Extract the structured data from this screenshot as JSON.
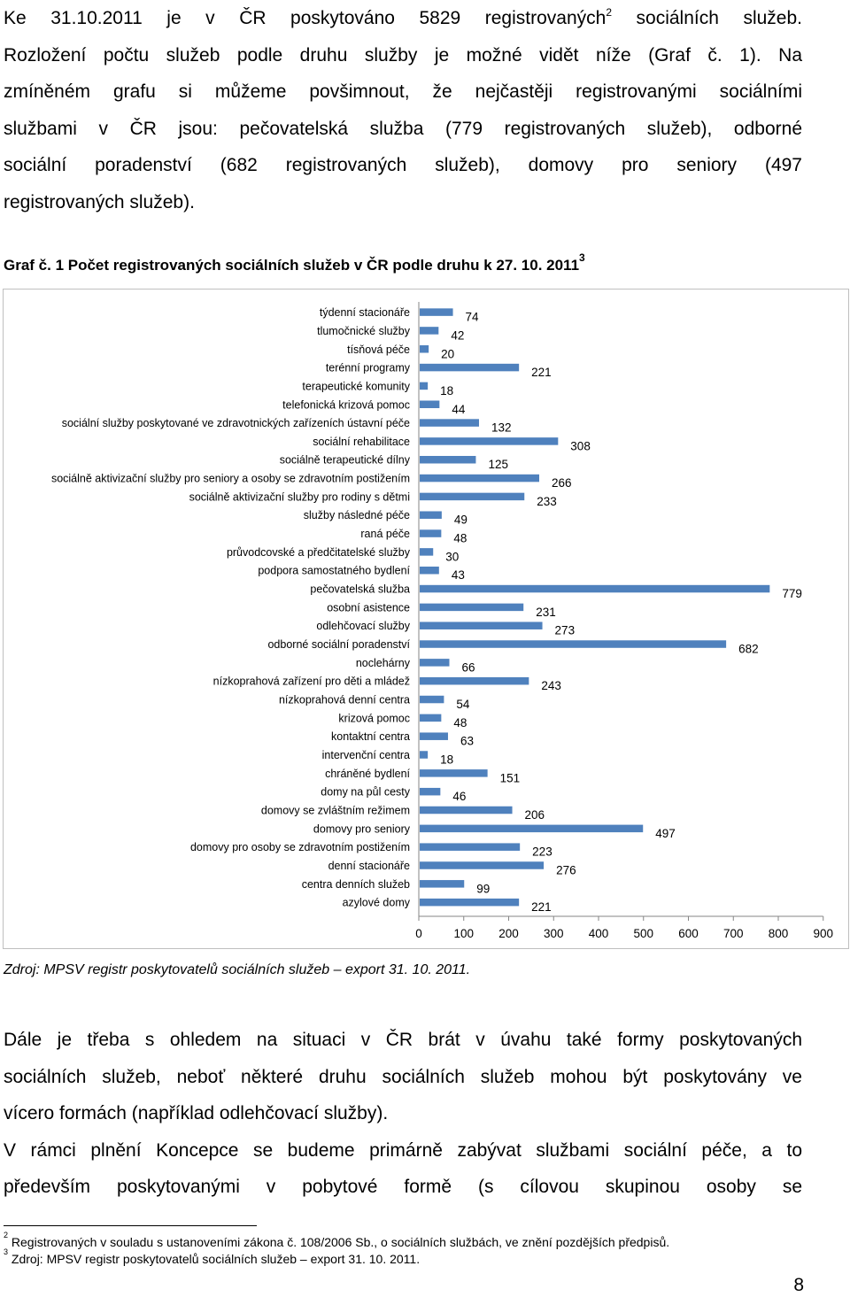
{
  "intro": {
    "line1": "Ke 31.10.2011 je v ČR poskytováno 5829 registrovaných",
    "fn_ref": "2",
    "line1_tail": "sociálních služeb.",
    "line2": "Rozložení počtu služeb podle druhu služby je možné vidět níže (Graf č. 1). Na",
    "line3": "zmíněném grafu si můžeme povšimnout, že nejčastěji registrovanými sociálními",
    "line4": "službami v ČR jsou:  pečovatelská služba (779 registrovaných služeb), odborné",
    "line5": "sociální poradenství (682 registrovaných služeb), domovy pro seniory (497",
    "line6": "registrovaných služeb)."
  },
  "caption": {
    "text": "Graf č. 1 Počet registrovaných sociálních služeb v ČR podle druhu  k 27. 10. 2011",
    "fn_ref": "3"
  },
  "chart_data": {
    "type": "bar",
    "orientation": "horizontal",
    "bar_color": "#4f81bd",
    "categories": [
      "týdenní stacionáře",
      "tlumočnické služby",
      "tísňová péče",
      "terénní programy",
      "terapeutické komunity",
      "telefonická krizová pomoc",
      "sociální služby poskytované ve zdravotnických zařízeních ústavní péče",
      "sociální rehabilitace",
      "sociálně terapeutické dílny",
      "sociálně aktivizační služby pro seniory a osoby se zdravotním postižením",
      "sociálně aktivizační služby pro rodiny s dětmi",
      "služby následné péče",
      "raná péče",
      "průvodcovské a předčitatelské služby",
      "podpora samostatného bydlení",
      "pečovatelská služba",
      "osobní asistence",
      "odlehčovací služby",
      "odborné sociální poradenství",
      "noclehárny",
      "nízkoprahová zařízení pro děti a mládež",
      "nízkoprahová denní centra",
      "krizová pomoc",
      "kontaktní centra",
      "intervenční centra",
      "chráněné bydlení",
      "domy na půl cesty",
      "domovy se zvláštním režimem",
      "domovy pro seniory",
      "domovy pro osoby se zdravotním postižením",
      "denní stacionáře",
      "centra denních služeb",
      "azylové domy"
    ],
    "values": [
      74,
      42,
      20,
      221,
      18,
      44,
      132,
      308,
      125,
      266,
      233,
      49,
      48,
      30,
      43,
      779,
      231,
      273,
      682,
      66,
      243,
      54,
      48,
      63,
      18,
      151,
      46,
      206,
      497,
      223,
      276,
      99,
      221
    ],
    "x_ticks": [
      "0",
      "100",
      "200",
      "300",
      "400",
      "500",
      "600",
      "700",
      "800",
      "900"
    ],
    "xlim": [
      0,
      900
    ],
    "grid": false,
    "legend": "none"
  },
  "source": {
    "text": "Zdroj: MPSV registr poskytovatelů sociálních služeb – export 31. 10. 2011."
  },
  "body": {
    "line1": "Dále je třeba s ohledem na  situaci v ČR brát v úvahu také formy poskytovaných",
    "line2": "sociálních služeb, neboť některé druhu sociálních služeb mohou být poskytovány ve",
    "line3": "vícero formách (například odlehčovací služby).",
    "line4": "V rámci plnění Koncepce se budeme primárně zabývat službami sociální péče, a to",
    "line5": "především poskytovanými v pobytové formě (s cílovou skupinou osoby se"
  },
  "footnotes": {
    "fn2_num": "2",
    "fn2_text": "Registrovaných v souladu s ustanoveními zákona č. 108/2006 Sb., o sociálních službách, ve znění pozdějších předpisů.",
    "fn3_num": "3",
    "fn3_text": "Zdroj: MPSV registr poskytovatelů sociálních služeb – export 31. 10. 2011."
  },
  "page_number": "8"
}
